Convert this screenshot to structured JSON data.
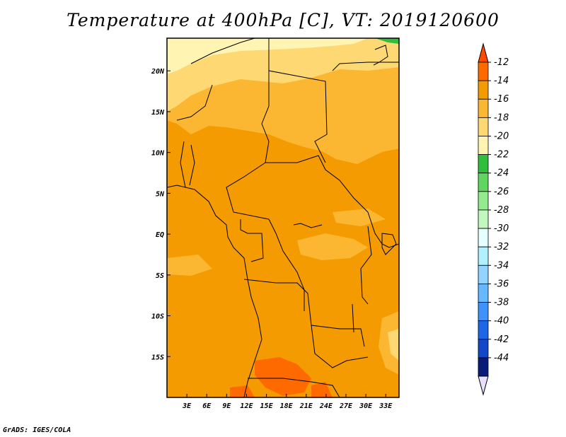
{
  "title": "Temperature at 400hPa [C], VT: 2019120600",
  "footer": "GrADS: IGES/COLA",
  "chart_data": {
    "type": "heatmap",
    "variable": "Temperature",
    "level": "400hPa",
    "units": "C",
    "valid_time": "2019120600",
    "lon_range": [
      0,
      35
    ],
    "lat_range": [
      -20,
      24
    ],
    "x_ticks": [
      {
        "value": 3,
        "label": "3E"
      },
      {
        "value": 6,
        "label": "6E"
      },
      {
        "value": 9,
        "label": "9E"
      },
      {
        "value": 12,
        "label": "12E"
      },
      {
        "value": 15,
        "label": "15E"
      },
      {
        "value": 18,
        "label": "18E"
      },
      {
        "value": 21,
        "label": "21E"
      },
      {
        "value": 24,
        "label": "24E"
      },
      {
        "value": 27,
        "label": "27E"
      },
      {
        "value": 30,
        "label": "30E"
      },
      {
        "value": 33,
        "label": "33E"
      }
    ],
    "y_ticks": [
      {
        "value": 20,
        "label": "20N"
      },
      {
        "value": 15,
        "label": "15N"
      },
      {
        "value": 10,
        "label": "10N"
      },
      {
        "value": 5,
        "label": "5N"
      },
      {
        "value": 0,
        "label": "EQ"
      },
      {
        "value": -5,
        "label": "5S"
      },
      {
        "value": -10,
        "label": "10S"
      },
      {
        "value": -15,
        "label": "15S"
      }
    ],
    "colorbar": {
      "levels": [
        "-12",
        "-14",
        "-16",
        "-18",
        "-20",
        "-22",
        "-24",
        "-26",
        "-28",
        "-30",
        "-32",
        "-34",
        "-36",
        "-38",
        "-40",
        "-42",
        "-44"
      ],
      "colors": [
        "#fe4b00",
        "#ff6a00",
        "#f59b02",
        "#fbb732",
        "#fdd873",
        "#fff4b2",
        "#31be3d",
        "#60d660",
        "#94ea8e",
        "#c2f7bd",
        "#e6ffff",
        "#b2f0ff",
        "#93d3ff",
        "#66b8ff",
        "#3e92fa",
        "#1e66e6",
        "#1248c8",
        "#0a1a78",
        "#e6e0ff"
      ]
    },
    "regions": [
      {
        "name": "sahara-band",
        "color": "#fdd873"
      },
      {
        "name": "sahel-band",
        "color": "#fbb732"
      },
      {
        "name": "central-africa",
        "color": "#f59b02"
      },
      {
        "name": "southern-warm-patch",
        "color": "#ff6a00"
      },
      {
        "name": "northern-cold-strip",
        "color": "#fff4b2"
      },
      {
        "name": "mediterranean-corner",
        "color": "#31be3d"
      }
    ]
  }
}
